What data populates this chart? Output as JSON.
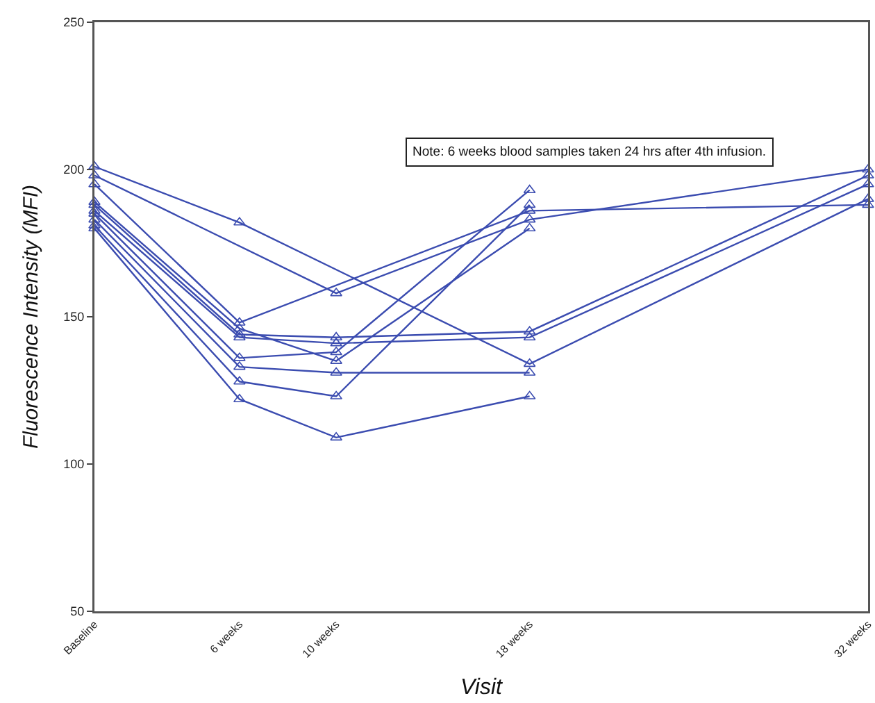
{
  "chart_data": {
    "type": "line",
    "xlabel": "Visit",
    "ylabel": "Fluorescence Intensity (MFI)",
    "annotations": [
      "Note: 6 weeks blood samples taken 24 hrs after 4th infusion."
    ],
    "xlim": [
      0,
      32
    ],
    "xticks": [
      {
        "value": 0,
        "label": "Baseline"
      },
      {
        "value": 6,
        "label": "6 weeks"
      },
      {
        "value": 10,
        "label": "10 weeks"
      },
      {
        "value": 18,
        "label": "18 weeks"
      },
      {
        "value": 32,
        "label": "32 weeks"
      }
    ],
    "ylim": [
      50,
      250
    ],
    "yticks": [
      50,
      100,
      150,
      200,
      250
    ],
    "grid": false,
    "marker": "triangle",
    "line_style": "solid",
    "series": [
      {
        "color": "#3b4cb0",
        "x": [
          0,
          6,
          18,
          32
        ],
        "values": [
          201,
          182,
          134,
          190
        ]
      },
      {
        "color": "#3b4cb0",
        "x": [
          0,
          10,
          18,
          32
        ],
        "values": [
          198,
          158,
          183,
          200
        ]
      },
      {
        "color": "#3b4cb0",
        "x": [
          0,
          6,
          18,
          32
        ],
        "values": [
          195,
          148,
          186,
          188
        ]
      },
      {
        "color": "#3b4cb0",
        "x": [
          0,
          6,
          10,
          18
        ],
        "values": [
          189,
          146,
          135,
          180
        ]
      },
      {
        "color": "#3b4cb0",
        "x": [
          0,
          6,
          10,
          18,
          32
        ],
        "values": [
          188,
          144,
          143,
          145,
          198
        ]
      },
      {
        "color": "#3b4cb0",
        "x": [
          0,
          6,
          10,
          18,
          32
        ],
        "values": [
          186,
          143,
          141,
          143,
          195
        ]
      },
      {
        "color": "#3b4cb0",
        "x": [
          0,
          6,
          10,
          18
        ],
        "values": [
          185,
          136,
          138,
          193
        ]
      },
      {
        "color": "#3b4cb0",
        "x": [
          0,
          6,
          10,
          18
        ],
        "values": [
          183,
          133,
          131,
          131
        ]
      },
      {
        "color": "#3b4cb0",
        "x": [
          0,
          6,
          10,
          18
        ],
        "values": [
          181,
          128,
          123,
          188
        ]
      },
      {
        "color": "#3b4cb0",
        "x": [
          0,
          6,
          10,
          18
        ],
        "values": [
          180,
          122,
          109,
          123
        ]
      }
    ]
  }
}
